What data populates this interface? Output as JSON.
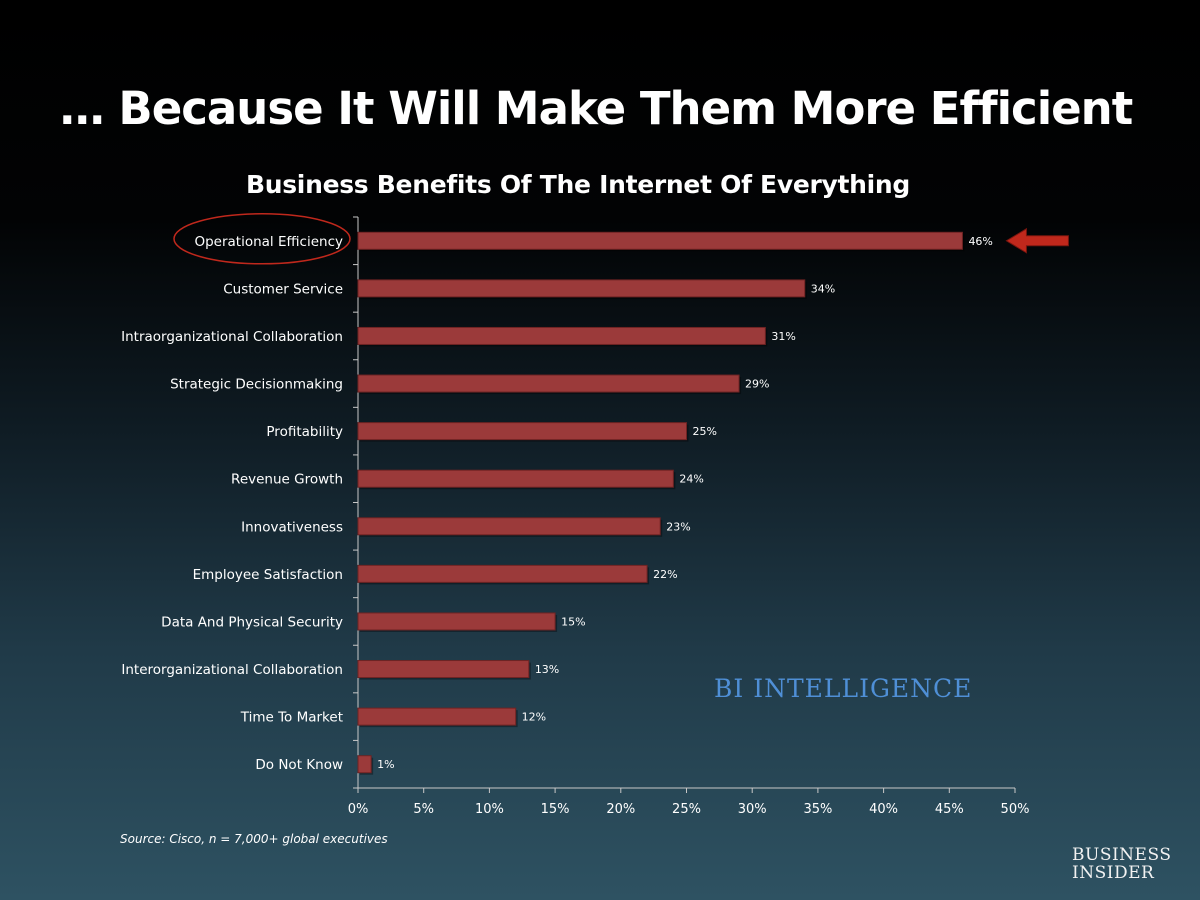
{
  "slide": {
    "title": "… Because It Will Make Them More Efficient",
    "source": "Source: Cisco, n = 7,000+ global executives",
    "watermark": "BI INTELLIGENCE",
    "logo_line1": "BUSINESS",
    "logo_line2": "INSIDER"
  },
  "colors": {
    "bar": "#9b3a3a",
    "bar_border": "#6f2323",
    "arrow": "#c0281c",
    "highlight_ring": "#c0281c",
    "axis": "#c8c8c8",
    "text": "#ffffff",
    "watermark": "#4f8fd6"
  },
  "chart_data": {
    "type": "bar",
    "orientation": "horizontal",
    "title": "Business Benefits Of The Internet Of Everything",
    "categories": [
      "Operational Efficiency",
      "Customer Service",
      "Intraorganizational Collaboration",
      "Strategic Decisionmaking",
      "Profitability",
      "Revenue Growth",
      "Innovativeness",
      "Employee Satisfaction",
      "Data And Physical Security",
      "Interorganizational Collaboration",
      "Time To Market",
      "Do Not Know"
    ],
    "values": [
      46,
      34,
      31,
      29,
      25,
      24,
      23,
      22,
      15,
      13,
      12,
      1
    ],
    "value_labels": [
      "46%",
      "34%",
      "31%",
      "29%",
      "25%",
      "24%",
      "23%",
      "22%",
      "15%",
      "13%",
      "12%",
      "1%"
    ],
    "xlim": [
      0,
      50
    ],
    "xticks": [
      0,
      5,
      10,
      15,
      20,
      25,
      30,
      35,
      40,
      45,
      50
    ],
    "xtick_labels": [
      "0%",
      "5%",
      "10%",
      "15%",
      "20%",
      "25%",
      "30%",
      "35%",
      "40%",
      "45%",
      "50%"
    ],
    "xlabel": "",
    "ylabel": "",
    "grid": false,
    "legend": "none",
    "highlighted_category": "Operational Efficiency"
  }
}
